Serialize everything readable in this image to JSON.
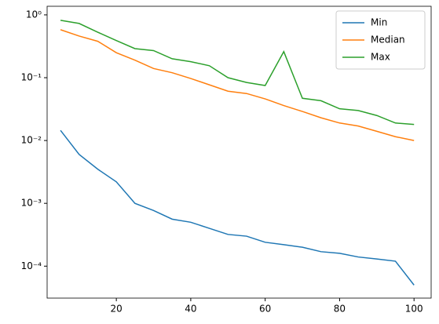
{
  "chart_data": {
    "type": "line",
    "x": [
      5,
      10,
      15,
      20,
      25,
      30,
      35,
      40,
      45,
      50,
      55,
      60,
      65,
      70,
      75,
      80,
      85,
      90,
      95,
      100
    ],
    "series": [
      {
        "name": "Min",
        "color": "#1f77b4",
        "values": [
          0.0145,
          0.006,
          0.0035,
          0.0022,
          0.001,
          0.00077,
          0.00056,
          0.0005,
          0.0004,
          0.00032,
          0.0003,
          0.00024,
          0.00022,
          0.0002,
          0.00017,
          0.00016,
          0.00014,
          0.00013,
          0.00012,
          5e-05
        ]
      },
      {
        "name": "Median",
        "color": "#ff7f0e",
        "values": [
          0.58,
          0.46,
          0.38,
          0.25,
          0.19,
          0.14,
          0.12,
          0.097,
          0.077,
          0.061,
          0.056,
          0.046,
          0.036,
          0.029,
          0.023,
          0.019,
          0.017,
          0.014,
          0.0115,
          0.01
        ]
      },
      {
        "name": "Max",
        "color": "#2ca02c",
        "values": [
          0.82,
          0.73,
          0.53,
          0.39,
          0.29,
          0.27,
          0.2,
          0.18,
          0.155,
          0.1,
          0.084,
          0.075,
          0.26,
          0.047,
          0.043,
          0.032,
          0.03,
          0.025,
          0.019,
          0.018
        ]
      }
    ],
    "xlim": [
      1.4,
      104.6
    ],
    "xticks": [
      20,
      40,
      60,
      80,
      100
    ],
    "ylim": [
      3.1e-05,
      1.37
    ],
    "ylog": true,
    "yticks": [
      {
        "value": 0.0001,
        "label": "10⁻⁴"
      },
      {
        "value": 0.001,
        "label": "10⁻³"
      },
      {
        "value": 0.01,
        "label": "10⁻²"
      },
      {
        "value": 0.1,
        "label": "10⁻¹"
      },
      {
        "value": 1,
        "label": "10⁰"
      }
    ],
    "grid": false,
    "legend": "upper right"
  }
}
